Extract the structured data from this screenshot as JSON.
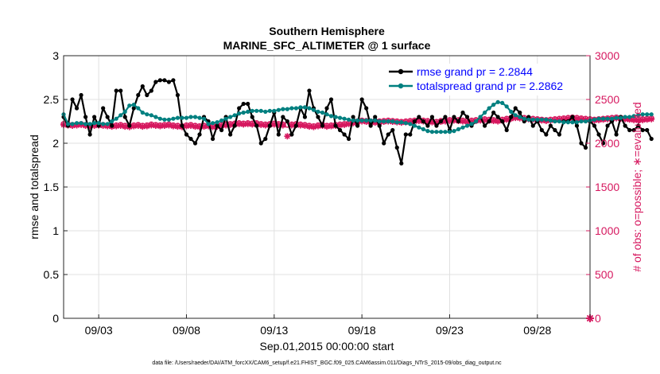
{
  "chart_data": {
    "type": "line",
    "title_lines": [
      "Southern Hemisphere",
      "MARINE_SFC_ALTIMETER @ 1 surface"
    ],
    "ylabel": "rmse and totalspread",
    "ylabel_right": "# of obs: o=possible; ∗=evaluated",
    "xlabel": "Sep.01,2015 00:00:00 start",
    "footer": "data file: /Users/raeder/DAI/ATM_forcXX/CAM6_setup/f.e21.FHIST_BGC.f09_025.CAM6assim.011/Diags_NTrS_2015-09/obs_diag_output.nc",
    "xlim": [
      1.0,
      31.0
    ],
    "ylim": [
      0,
      3
    ],
    "ylim_right": [
      0,
      3000
    ],
    "yticks": [
      "0",
      "0.5",
      "1",
      "1.5",
      "2",
      "2.5",
      "3"
    ],
    "yticks_right": [
      "0",
      "500",
      "1000",
      "1500",
      "2000",
      "2500",
      "3000"
    ],
    "xticks": [
      {
        "x": 3,
        "label": "09/03"
      },
      {
        "x": 8,
        "label": "09/08"
      },
      {
        "x": 13,
        "label": "09/13"
      },
      {
        "x": 18,
        "label": "09/18"
      },
      {
        "x": 23,
        "label": "09/23"
      },
      {
        "x": 28,
        "label": "09/28"
      }
    ],
    "grid": true,
    "legend_position": "top-right",
    "colors": {
      "rmse": "#000000",
      "spread": "#008080",
      "obs": "#d6185f",
      "legend_text": "#0000ff"
    },
    "x_start": 1.0,
    "x_step": 0.25,
    "series": [
      {
        "name": "rmse grand pr = 2.2844",
        "axis": "left",
        "values": [
          2.3,
          2.2,
          2.5,
          2.4,
          2.55,
          2.3,
          2.1,
          2.3,
          2.2,
          2.4,
          2.3,
          2.2,
          2.6,
          2.6,
          2.3,
          2.2,
          2.4,
          2.55,
          2.65,
          2.55,
          2.6,
          2.7,
          2.72,
          2.72,
          2.7,
          2.72,
          2.55,
          2.2,
          2.1,
          2.05,
          2.0,
          2.1,
          2.3,
          2.25,
          2.05,
          2.2,
          2.15,
          2.3,
          2.1,
          2.2,
          2.4,
          2.45,
          2.45,
          2.3,
          2.2,
          2.0,
          2.05,
          2.2,
          2.35,
          2.1,
          2.3,
          2.25,
          2.1,
          2.2,
          2.4,
          2.3,
          2.6,
          2.4,
          2.3,
          2.2,
          2.4,
          2.5,
          2.2,
          2.15,
          2.1,
          2.05,
          2.3,
          2.2,
          2.5,
          2.4,
          2.2,
          2.3,
          2.2,
          2.0,
          2.1,
          2.15,
          1.95,
          1.77,
          2.1,
          2.1,
          2.25,
          2.3,
          2.25,
          2.2,
          2.3,
          2.2,
          2.25,
          2.3,
          2.15,
          2.3,
          2.25,
          2.35,
          2.3,
          2.2,
          2.25,
          2.3,
          2.2,
          2.25,
          2.35,
          2.3,
          2.25,
          2.15,
          2.3,
          2.4,
          2.35,
          2.25,
          2.3,
          2.2,
          2.25,
          2.15,
          2.1,
          2.2,
          2.15,
          2.1,
          2.25,
          2.25,
          2.3,
          2.2,
          2.0,
          1.95,
          2.25,
          2.2,
          2.1,
          2.0,
          2.2,
          2.25,
          2.1,
          2.3,
          2.2,
          2.15,
          2.15,
          2.2,
          2.15,
          2.15,
          2.05
        ]
      },
      {
        "name": "totalspread grand pr = 2.2862",
        "axis": "left",
        "values": [
          2.33,
          2.22,
          2.22,
          2.23,
          2.23,
          2.22,
          2.22,
          2.23,
          2.23,
          2.22,
          2.22,
          2.25,
          2.28,
          2.32,
          2.36,
          2.43,
          2.44,
          2.4,
          2.35,
          2.33,
          2.32,
          2.3,
          2.28,
          2.27,
          2.27,
          2.28,
          2.29,
          2.29,
          2.29,
          2.3,
          2.3,
          2.29,
          2.28,
          2.22,
          2.23,
          2.24,
          2.26,
          2.28,
          2.3,
          2.32,
          2.34,
          2.35,
          2.36,
          2.37,
          2.37,
          2.37,
          2.36,
          2.37,
          2.37,
          2.38,
          2.39,
          2.39,
          2.4,
          2.4,
          2.41,
          2.41,
          2.4,
          2.38,
          2.36,
          2.35,
          2.33,
          2.31,
          2.3,
          2.29,
          2.28,
          2.27,
          2.26,
          2.26,
          2.26,
          2.26,
          2.26,
          2.26,
          2.25,
          2.25,
          2.25,
          2.25,
          2.24,
          2.24,
          2.23,
          2.22,
          2.2,
          2.18,
          2.16,
          2.14,
          2.13,
          2.13,
          2.13,
          2.13,
          2.13,
          2.14,
          2.16,
          2.18,
          2.2,
          2.22,
          2.25,
          2.3,
          2.35,
          2.4,
          2.44,
          2.47,
          2.46,
          2.42,
          2.36,
          2.32,
          2.3,
          2.28,
          2.27,
          2.27,
          2.27,
          2.27,
          2.27,
          2.26,
          2.25,
          2.25,
          2.24,
          2.24,
          2.24,
          2.24,
          2.25,
          2.25,
          2.26,
          2.27,
          2.28,
          2.28,
          2.28,
          2.28,
          2.29,
          2.29,
          2.3,
          2.3,
          2.31,
          2.32,
          2.33,
          2.33,
          2.33
        ]
      },
      {
        "name": "possible",
        "axis": "right",
        "marker": "circle",
        "values": [
          2220,
          2215,
          2210,
          2215,
          2220,
          2210,
          2205,
          2210,
          2215,
          2210,
          2205,
          2200,
          2205,
          2210,
          2200,
          2195,
          2205,
          2210,
          2200,
          2205,
          2215,
          2210,
          2205,
          2210,
          2215,
          2205,
          2200,
          2195,
          2205,
          2210,
          2200,
          2195,
          2200,
          2205,
          2195,
          2200,
          2210,
          2215,
          2220,
          2225,
          2230,
          2225,
          2230,
          2225,
          2230,
          2220,
          2215,
          2220,
          2225,
          2220,
          2215,
          2210,
          2215,
          2220,
          2215,
          2210,
          2200,
          2195,
          2205,
          2210,
          2200,
          2205,
          2210,
          2215,
          2220,
          2230,
          2240,
          2250,
          2260,
          2255,
          2250,
          2245,
          2250,
          2255,
          2260,
          2255,
          2250,
          2245,
          2250,
          2255,
          2260,
          2265,
          2260,
          2255,
          2250,
          2245,
          2255,
          2260,
          2265,
          2270,
          2265,
          2260,
          2255,
          2260,
          2265,
          2270,
          2275,
          2270,
          2265,
          2260,
          2270,
          2280,
          2290,
          2300,
          2295,
          2290,
          2285,
          2280,
          2275,
          2270,
          2265,
          2270,
          2275,
          2280,
          2285,
          2290,
          2295,
          2290,
          2285,
          2280,
          2275,
          2270,
          2275,
          2280,
          2285,
          2290,
          2295,
          2290,
          2285,
          2280,
          2275,
          2270,
          2275,
          2280,
          2285
        ]
      },
      {
        "name": "evaluated",
        "axis": "right",
        "marker": "star",
        "values": [
          2210,
          2205,
          2200,
          2205,
          2210,
          2200,
          2195,
          2200,
          2205,
          2200,
          2195,
          2190,
          2195,
          2200,
          2190,
          2185,
          2195,
          2200,
          2190,
          2195,
          2205,
          2200,
          2195,
          2200,
          2205,
          2195,
          2190,
          2185,
          2195,
          2200,
          2190,
          2185,
          2190,
          2195,
          2185,
          2190,
          2200,
          2205,
          2210,
          2215,
          2220,
          2215,
          2220,
          2215,
          2220,
          2210,
          2205,
          2210,
          2215,
          2210,
          2205,
          2080,
          2205,
          2210,
          2205,
          2200,
          2190,
          2185,
          2195,
          2200,
          2190,
          2195,
          2200,
          2205,
          2210,
          2220,
          2230,
          2240,
          2250,
          2245,
          2240,
          2235,
          2240,
          2245,
          2250,
          2245,
          2240,
          2235,
          2240,
          2245,
          2250,
          2255,
          2250,
          2245,
          2240,
          2235,
          2245,
          2250,
          2255,
          2260,
          2255,
          2250,
          2245,
          2250,
          2255,
          2260,
          2265,
          2260,
          2255,
          2250,
          2260,
          2270,
          2280,
          2290,
          2285,
          2280,
          2275,
          2270,
          2265,
          2260,
          2255,
          2260,
          2265,
          2270,
          2275,
          2280,
          2285,
          2280,
          2275,
          2270,
          2265,
          2260,
          2265,
          2270,
          2275,
          2280,
          2285,
          2280,
          2275,
          2270,
          2265,
          2260,
          2265,
          2270,
          2275
        ]
      }
    ],
    "edge_markers": [
      {
        "x": 31.0,
        "value": 0,
        "marker": "star"
      }
    ]
  }
}
